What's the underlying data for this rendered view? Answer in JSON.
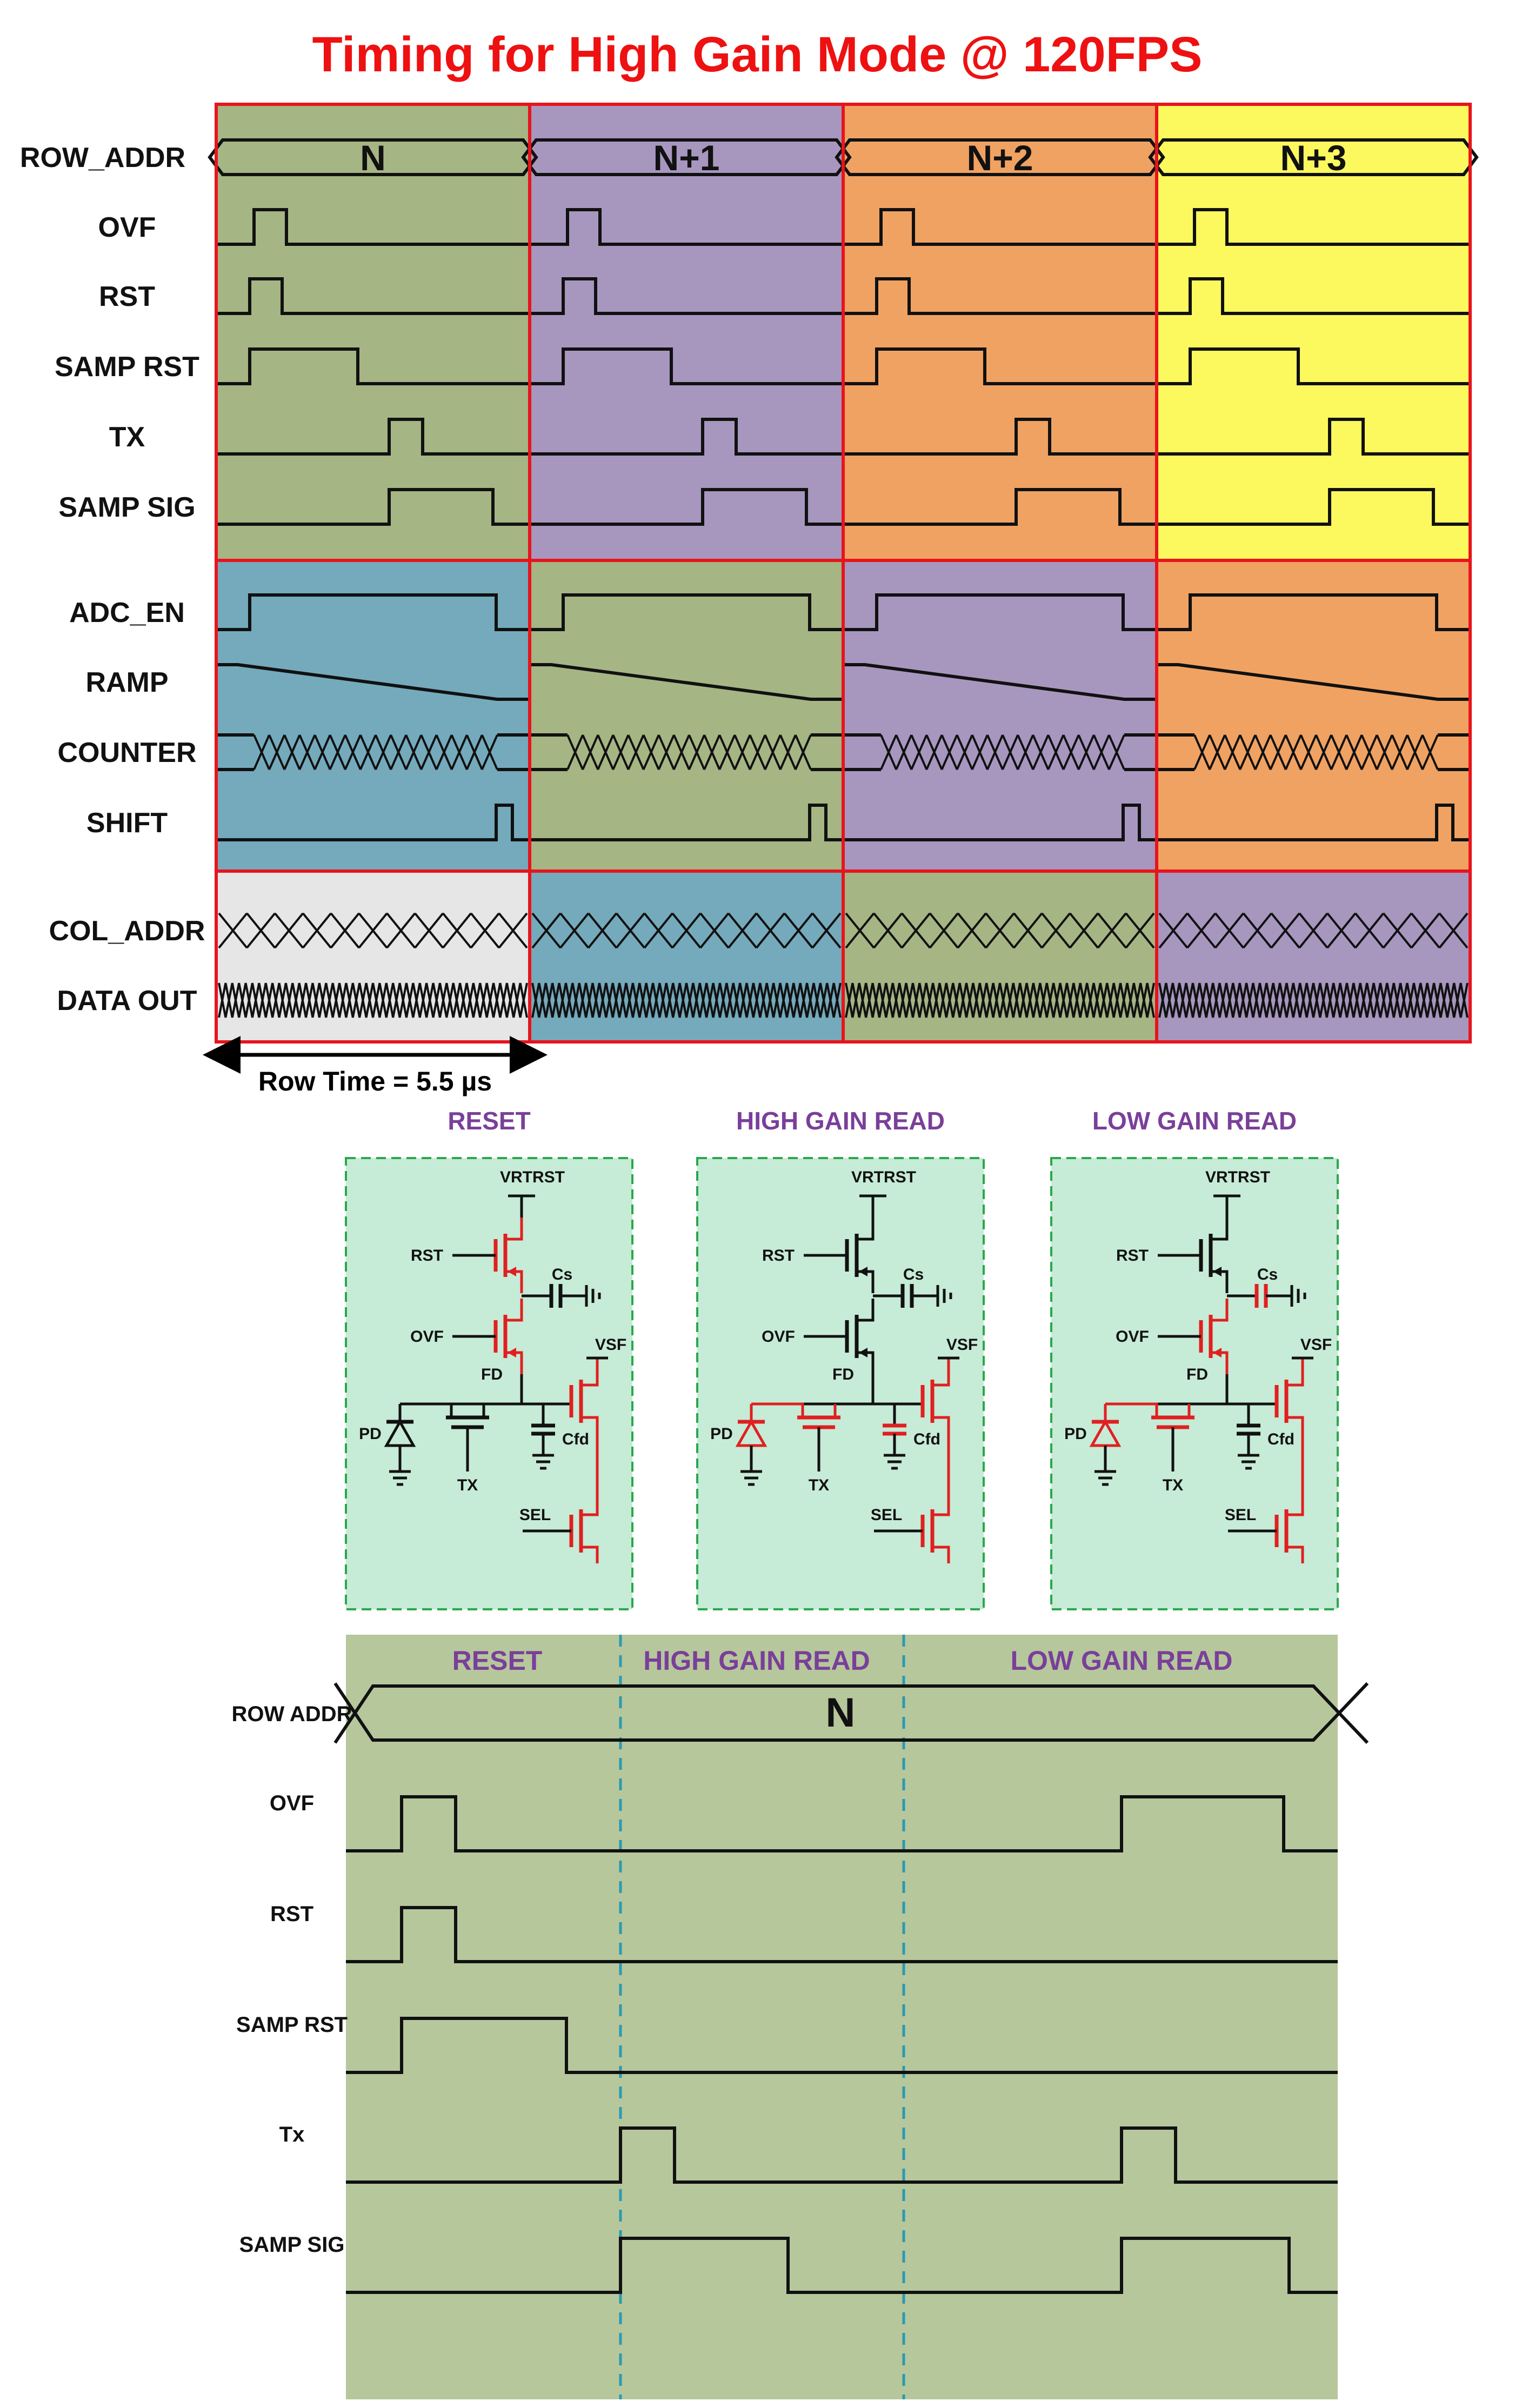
{
  "title": "Timing for High Gain Mode @ 120FPS",
  "colors": {
    "title": "#ee1111",
    "frame": "#e8141c",
    "green": "#a5b584",
    "purple": "#a797bf",
    "orange": "#f0a262",
    "yellow": "#fbf95d",
    "blue": "#74aabc",
    "gray": "#e6e6e6",
    "teal_panel": "#c6ebd7",
    "panel_border": "#2aa84a",
    "lower_bg": "#b6c79c",
    "phase_label": "#7a3f9a",
    "dashed": "#2a9ab0",
    "highlight": "#e02020"
  },
  "top_chart": {
    "row_addr_values": [
      "N",
      "N+1",
      "N+2",
      "N+3"
    ],
    "section1_labels": [
      "ROW_ADDR",
      "OVF",
      "RST",
      "SAMP RST",
      "TX",
      "SAMP SIG"
    ],
    "section2_labels": [
      "ADC_EN",
      "RAMP",
      "COUNTER",
      "SHIFT"
    ],
    "section3_labels": [
      "COL_ADDR",
      "DATA OUT"
    ],
    "row_time_label": "Row Time = 5.5 µs"
  },
  "schematics": {
    "panels": [
      {
        "title": "RESET",
        "highlight": [
          "rst",
          "ovf",
          "sf",
          "sel"
        ]
      },
      {
        "title": "HIGH GAIN READ",
        "highlight": [
          "pd",
          "tx",
          "sf",
          "sel",
          "cfd"
        ]
      },
      {
        "title": "LOW GAIN READ",
        "highlight": [
          "pd",
          "tx",
          "ovf",
          "sf",
          "sel",
          "cs"
        ]
      }
    ],
    "node_labels": {
      "vrtrst": "VRTRST",
      "rst": "RST",
      "cs": "Cs",
      "ovf": "OVF",
      "vsf": "VSF",
      "fd": "FD",
      "pd": "PD",
      "cfd": "Cfd",
      "tx": "TX",
      "sel": "SEL"
    }
  },
  "bottom_chart": {
    "phases": [
      "RESET",
      "HIGH GAIN READ",
      "LOW GAIN READ"
    ],
    "row_value": "N",
    "signal_labels": [
      "ROW ADDR",
      "OVF",
      "RST",
      "SAMP RST",
      "Tx",
      "SAMP SIG"
    ]
  }
}
